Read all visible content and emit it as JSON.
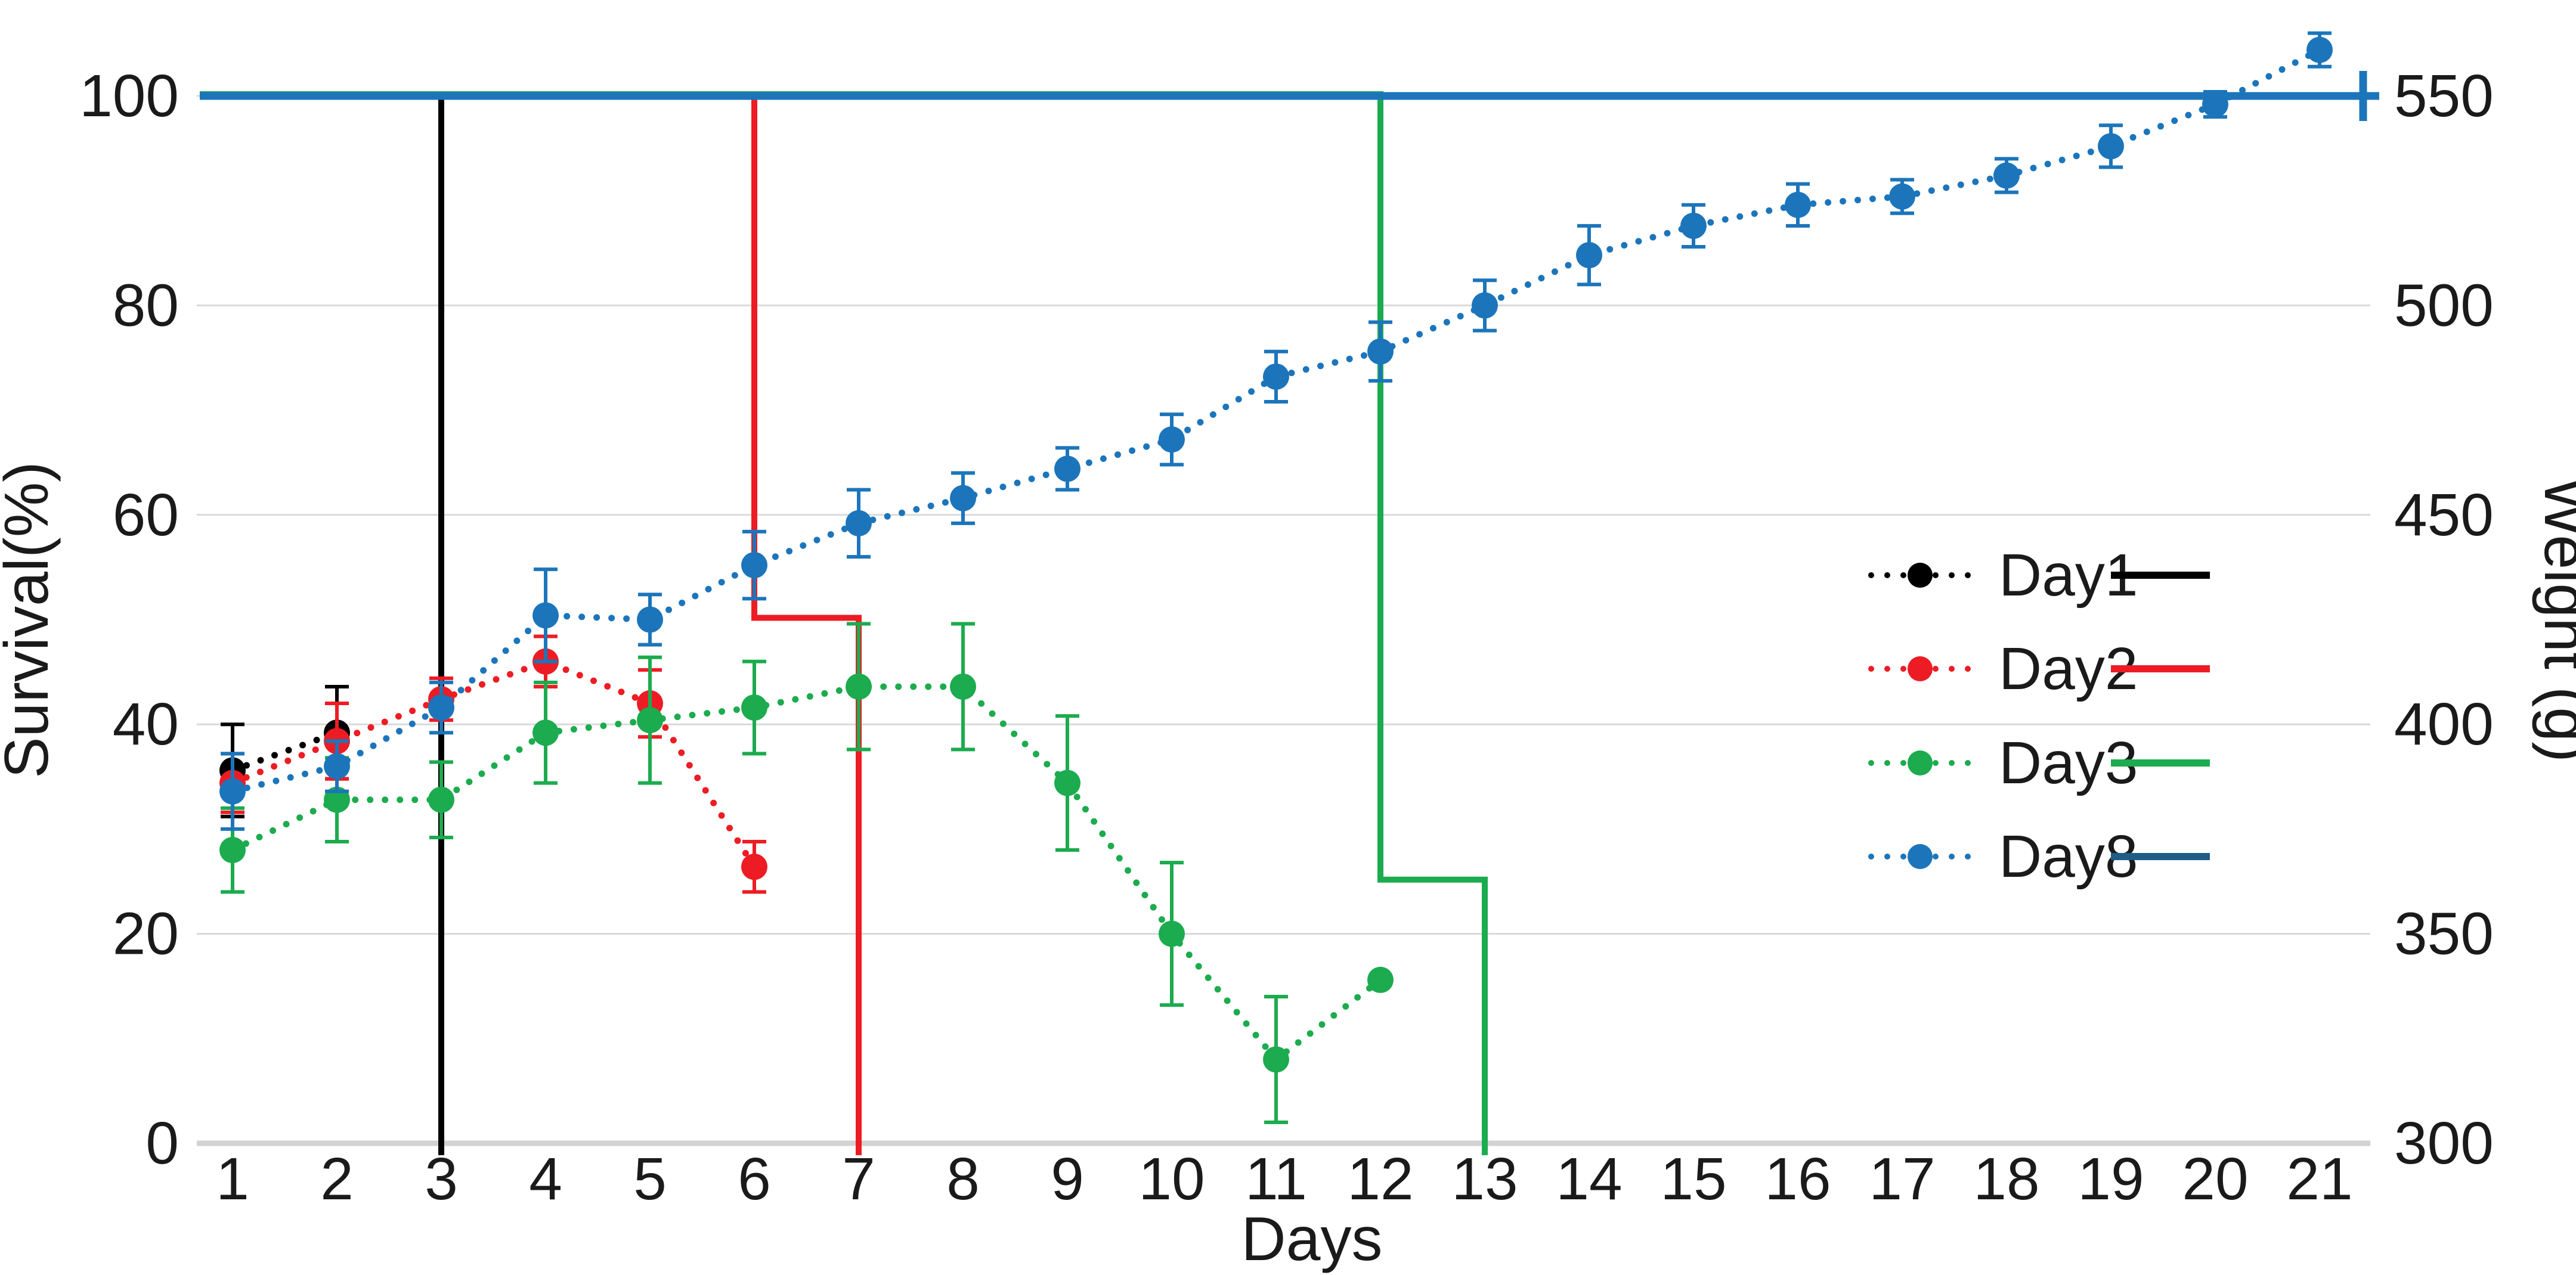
{
  "chart_data": {
    "type": "line",
    "title": "",
    "xlabel": "Days",
    "ylabel_left": "Survival(%)",
    "ylabel_right": "Weight (g)",
    "x_ticks": [
      1,
      2,
      3,
      4,
      5,
      6,
      7,
      8,
      9,
      10,
      11,
      12,
      13,
      14,
      15,
      16,
      17,
      18,
      19,
      20,
      21
    ],
    "left_axis": {
      "label": "Survival(%)",
      "min": 0,
      "max": 100,
      "ticks": [
        100,
        80,
        60,
        40,
        20,
        0
      ]
    },
    "right_axis": {
      "label": "Weight (g)",
      "min": 300,
      "max": 550,
      "ticks": [
        550,
        500,
        450,
        400,
        350,
        300
      ]
    },
    "grid": "horizontal-only",
    "legend_position": "right-middle",
    "weight_series": [
      {
        "name": "Day1",
        "color": "#000000",
        "axis": "right",
        "x": [
          1,
          2
        ],
        "weight_g": [
          389,
          398
        ],
        "err_g": [
          11,
          11
        ]
      },
      {
        "name": "Day2",
        "color": "#ed1c24",
        "axis": "right",
        "x": [
          1,
          2,
          3,
          4,
          5,
          6
        ],
        "weight_g": [
          386,
          396,
          406,
          415,
          405,
          366
        ],
        "err_g": [
          7,
          9,
          5,
          6,
          8,
          6
        ]
      },
      {
        "name": "Day3",
        "color": "#1cab4e",
        "axis": "right",
        "x": [
          1,
          2,
          3,
          4,
          5,
          6,
          7,
          8,
          9,
          10,
          11,
          12
        ],
        "weight_g": [
          370,
          382,
          382,
          398,
          401,
          404,
          409,
          409,
          386,
          350,
          320,
          339
        ],
        "err_g": [
          10,
          10,
          9,
          12,
          15,
          11,
          15,
          15,
          16,
          17,
          15,
          0
        ]
      },
      {
        "name": "Day8",
        "color": "#1c75bb",
        "axis": "right",
        "x": [
          1,
          2,
          3,
          4,
          5,
          6,
          7,
          8,
          9,
          10,
          11,
          12,
          13,
          14,
          15,
          16,
          17,
          18,
          19,
          20,
          21
        ],
        "weight_g": [
          384,
          390,
          404,
          426,
          425,
          438,
          448,
          454,
          461,
          468,
          483,
          489,
          500,
          512,
          519,
          524,
          526,
          531,
          538,
          548,
          561
        ],
        "err_g": [
          9,
          6,
          6,
          11,
          6,
          8,
          8,
          6,
          5,
          6,
          6,
          7,
          6,
          7,
          5,
          5,
          4,
          4,
          5,
          3,
          4
        ]
      }
    ],
    "survival_series": [
      {
        "name": "Day1",
        "color": "#000000",
        "axis": "left",
        "step_points": [
          [
            1,
            100
          ],
          [
            3,
            100
          ],
          [
            3,
            0
          ]
        ]
      },
      {
        "name": "Day2",
        "color": "#ed1c24",
        "axis": "left",
        "step_points": [
          [
            1,
            100
          ],
          [
            6,
            100
          ],
          [
            6,
            50
          ],
          [
            7,
            50
          ],
          [
            7,
            0
          ]
        ]
      },
      {
        "name": "Day3",
        "color": "#1cab4e",
        "axis": "left",
        "step_points": [
          [
            1,
            100
          ],
          [
            12,
            100
          ],
          [
            12,
            25
          ],
          [
            13,
            25
          ],
          [
            13,
            0
          ]
        ]
      },
      {
        "name": "Day8",
        "color": "#1c75bb",
        "axis": "left",
        "step_points": [
          [
            1,
            100
          ],
          [
            21,
            100
          ]
        ],
        "censor_tick_at_end": true
      }
    ],
    "legend": [
      {
        "label": "Day1",
        "marker_color": "#000000",
        "line_color": "#000000"
      },
      {
        "label": "Day2",
        "marker_color": "#ed1c24",
        "line_color": "#ed1c24"
      },
      {
        "label": "Day3",
        "marker_color": "#1cab4e",
        "line_color": "#1cab4e"
      },
      {
        "label": "Day8",
        "marker_color": "#1c75bb",
        "line_color": "#1f5c87"
      }
    ],
    "colors": {
      "background": "#ffffff",
      "gridline": "#d9d9d9",
      "zero_axis_line": "#d2d2d2",
      "text": "#1a1a1a"
    }
  }
}
